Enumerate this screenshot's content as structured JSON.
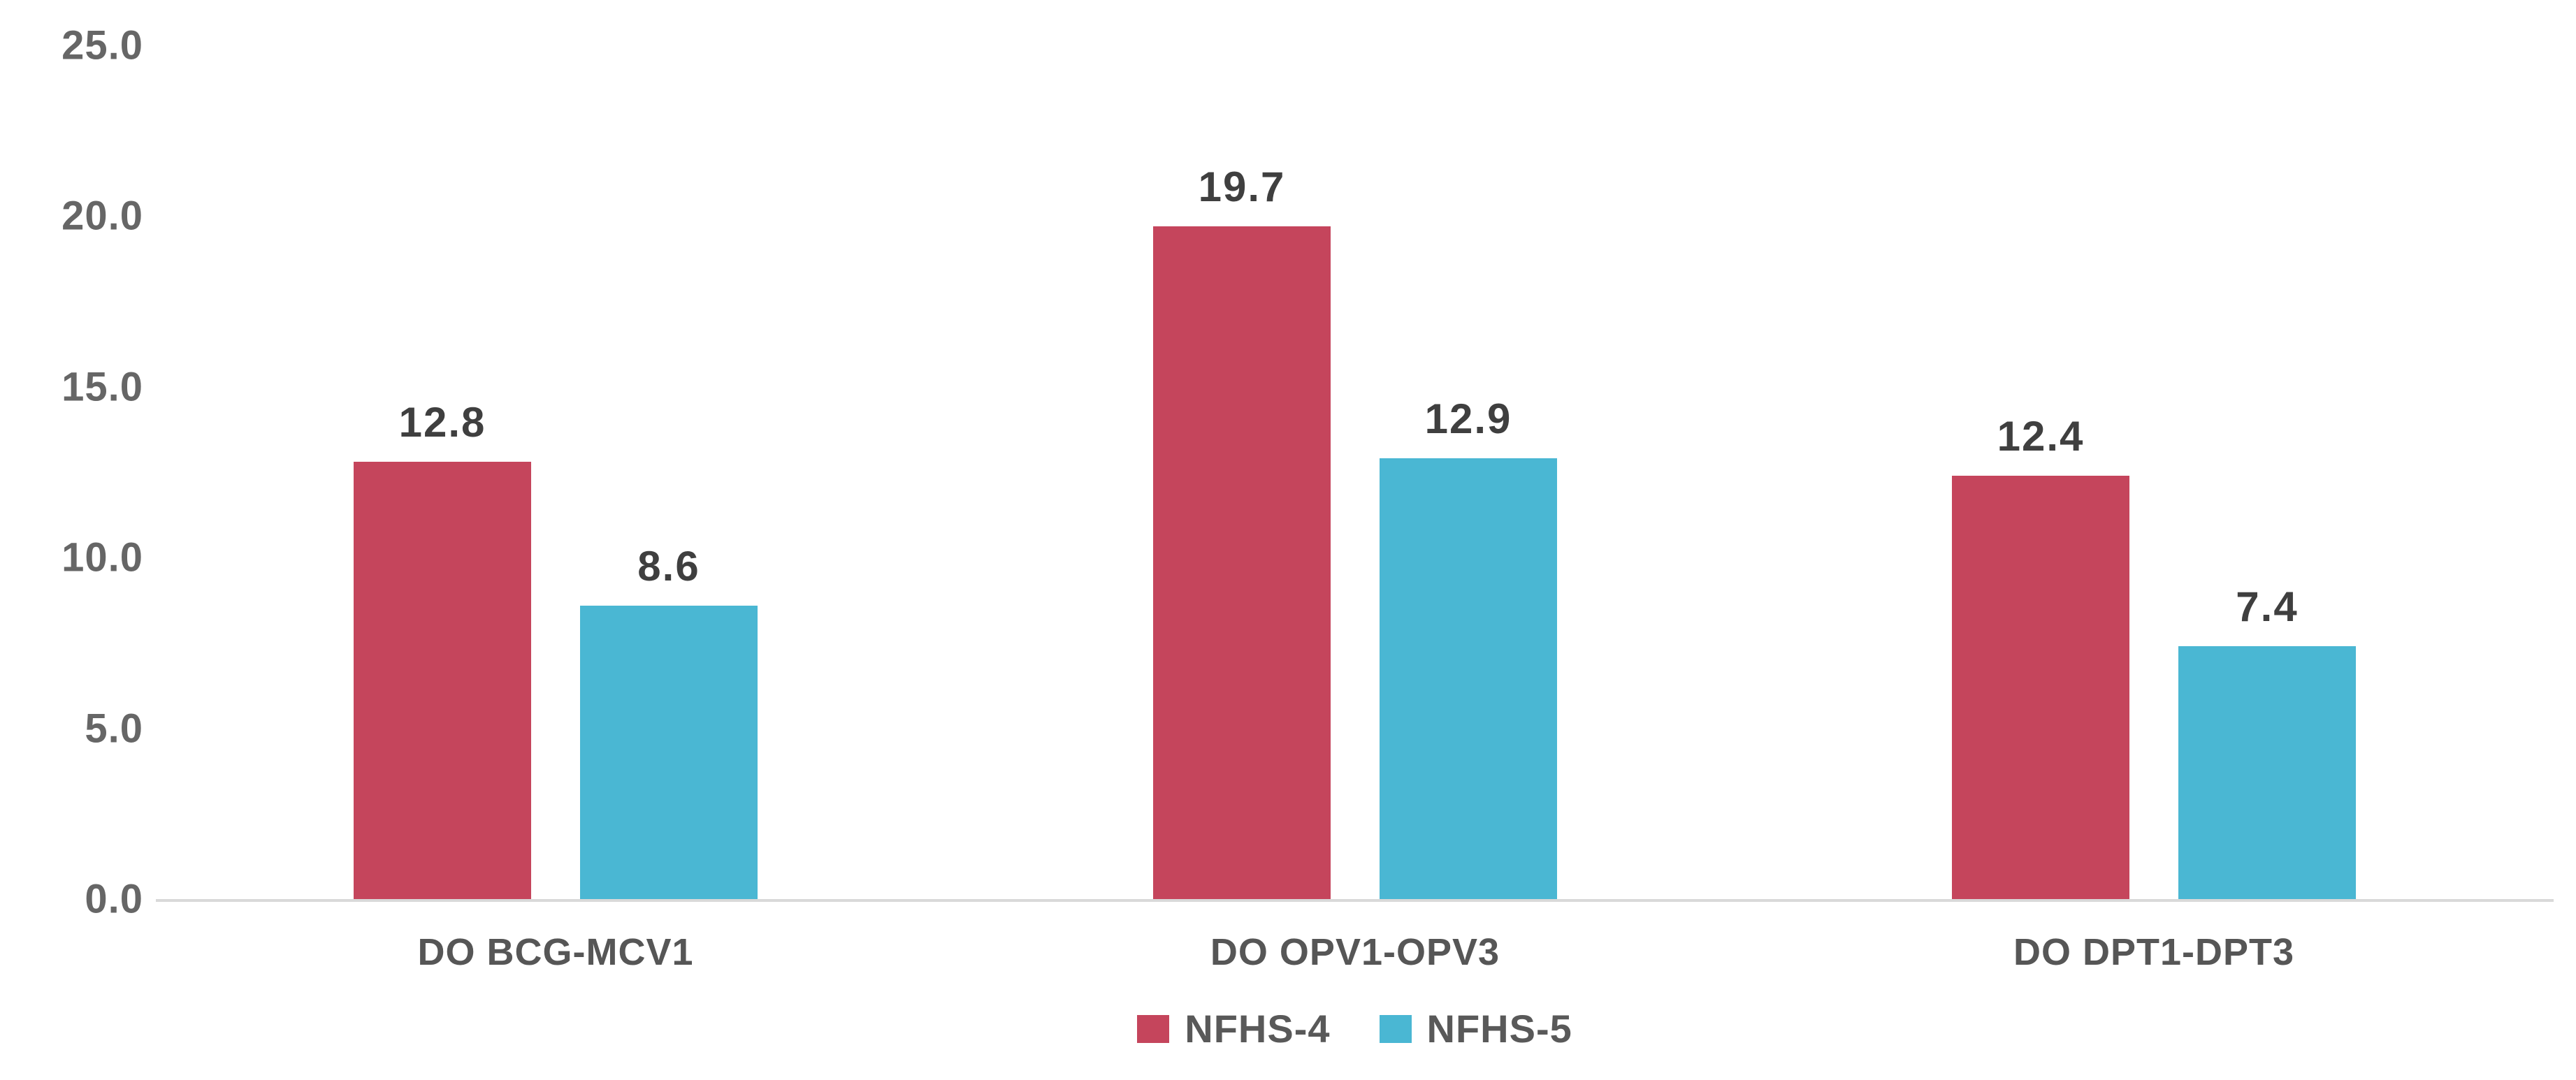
{
  "chart_data": {
    "type": "bar",
    "categories": [
      "DO BCG-MCV1",
      "DO OPV1-OPV3",
      "DO DPT1-DPT3"
    ],
    "series": [
      {
        "name": "NFHS-4",
        "color": "#C5455C",
        "values": [
          12.8,
          19.7,
          12.4
        ]
      },
      {
        "name": "NFHS-5",
        "color": "#4AB7D3",
        "values": [
          8.6,
          12.9,
          7.4
        ]
      }
    ],
    "value_labels": [
      [
        "12.8",
        "19.7",
        "12.4"
      ],
      [
        "8.6",
        "12.9",
        "7.4"
      ]
    ],
    "ylim": [
      0,
      25
    ],
    "ytick_step": 5,
    "ytick_labels": [
      "0.0",
      "5.0",
      "10.0",
      "15.0",
      "20.0",
      "25.0"
    ],
    "yticks": [
      0,
      5,
      10,
      15,
      20,
      25
    ],
    "title": "",
    "xlabel": "",
    "ylabel": "",
    "grid": false,
    "legend_position": "bottom",
    "value_labels_shown": true
  },
  "colors": {
    "background": "#FFFFFF",
    "axis_line": "#D9D9D9",
    "tick_label": "#666666",
    "category_label": "#565656",
    "value_label": "#3F3F3F",
    "legend_label": "#595959",
    "series_nfhs4": "#C5455C",
    "series_nfhs5": "#4AB7D3"
  }
}
